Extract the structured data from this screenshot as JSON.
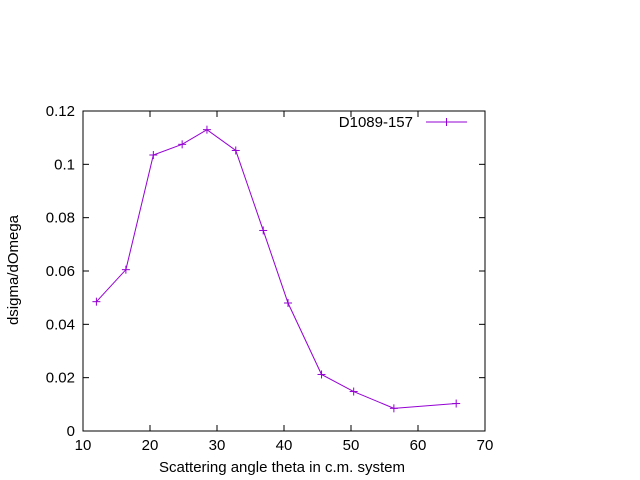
{
  "chart_data": {
    "type": "line",
    "title": "",
    "xlabel": "Scattering angle theta in c.m. system",
    "ylabel": "dsigma/dOmega",
    "xlim": [
      10,
      70
    ],
    "ylim": [
      0,
      0.12
    ],
    "xticks": [
      "10",
      "20",
      "30",
      "40",
      "50",
      "60",
      "70"
    ],
    "xtick_values": [
      10,
      20,
      30,
      40,
      50,
      60,
      70
    ],
    "yticks": [
      "0",
      "0.02",
      "0.04",
      "0.06",
      "0.08",
      "0.1",
      "0.12"
    ],
    "ytick_values": [
      0,
      0.02,
      0.04,
      0.06,
      0.08,
      0.1,
      0.12
    ],
    "grid": false,
    "legend_position": "top-right",
    "series": [
      {
        "name": "D1089-157",
        "color": "#9400d3",
        "marker": "plus",
        "x": [
          12.0,
          16.4,
          20.5,
          24.8,
          28.5,
          32.8,
          36.9,
          40.6,
          45.6,
          50.4,
          56.4,
          65.7
        ],
        "y": [
          0.0485,
          0.0605,
          0.1035,
          0.1075,
          0.113,
          0.1052,
          0.0752,
          0.048,
          0.0212,
          0.0148,
          0.0085,
          0.0103
        ]
      }
    ]
  }
}
